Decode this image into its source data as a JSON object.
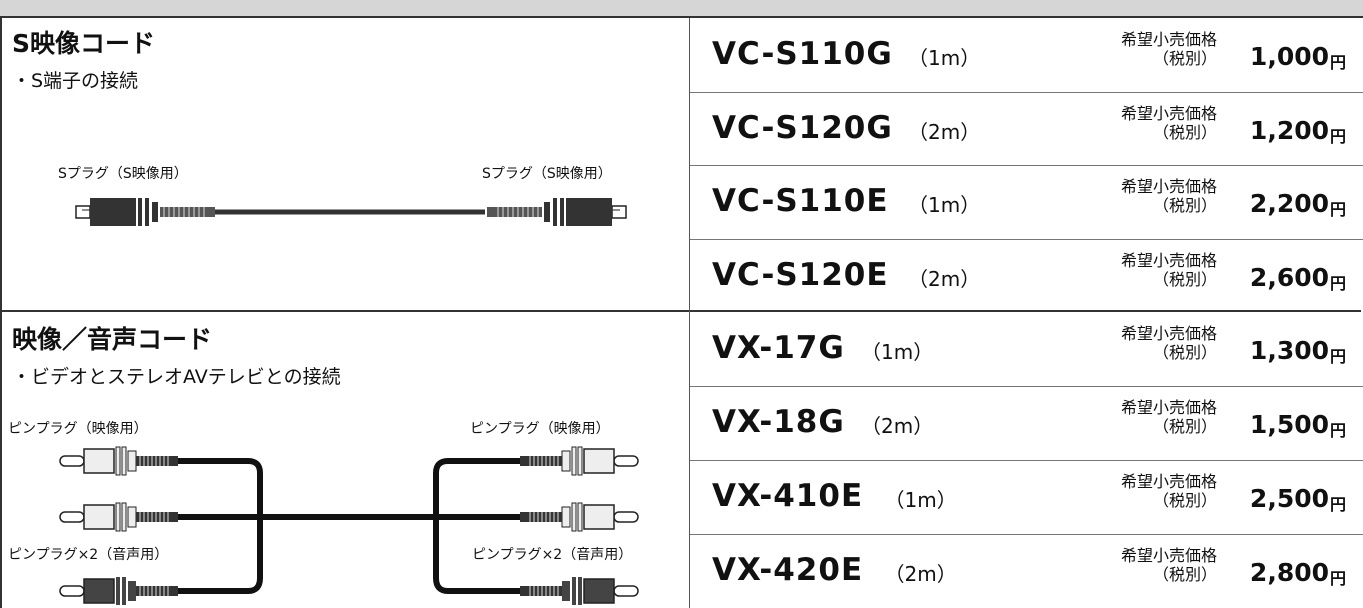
{
  "sections": [
    {
      "title": "S映像コード",
      "note": "・S端子の接続",
      "plug_labels": [
        "Sプラグ（S映像用）",
        "Sプラグ（S映像用）"
      ],
      "products": [
        {
          "model": "VC-S110G",
          "length": "（1m）",
          "price_label": [
            "希望小売価格",
            "（税別）"
          ],
          "price": "1,000",
          "currency": "円"
        },
        {
          "model": "VC-S120G",
          "length": "（2m）",
          "price_label": [
            "希望小売価格",
            "（税別）"
          ],
          "price": "1,200",
          "currency": "円"
        },
        {
          "model": "VC-S110E",
          "length": "（1m）",
          "price_label": [
            "希望小売価格",
            "（税別）"
          ],
          "price": "2,200",
          "currency": "円"
        },
        {
          "model": "VC-S120E",
          "length": "（2m）",
          "price_label": [
            "希望小売価格",
            "（税別）"
          ],
          "price": "2,600",
          "currency": "円"
        }
      ]
    },
    {
      "title": "映像／音声コード",
      "note": "・ビデオとステレオAVテレビとの接続",
      "plug_labels": [
        "ピンプラグ（映像用）",
        "ピンプラグ（映像用）",
        "ピンプラグ×2（音声用）",
        "ピンプラグ×2（音声用）"
      ],
      "products": [
        {
          "model": "VX-17G",
          "length": "（1m）",
          "price_label": [
            "希望小売価格",
            "（税別）"
          ],
          "price": "1,300",
          "currency": "円"
        },
        {
          "model": "VX-18G",
          "length": "（2m）",
          "price_label": [
            "希望小売価格",
            "（税別）"
          ],
          "price": "1,500",
          "currency": "円"
        },
        {
          "model": "VX-410E",
          "length": "（1m）",
          "price_label": [
            "希望小売価格",
            "（税別）"
          ],
          "price": "2,500",
          "currency": "円"
        },
        {
          "model": "VX-420E",
          "length": "（2m）",
          "price_label": [
            "希望小売価格",
            "（税別）"
          ],
          "price": "2,800",
          "currency": "円"
        }
      ]
    }
  ]
}
